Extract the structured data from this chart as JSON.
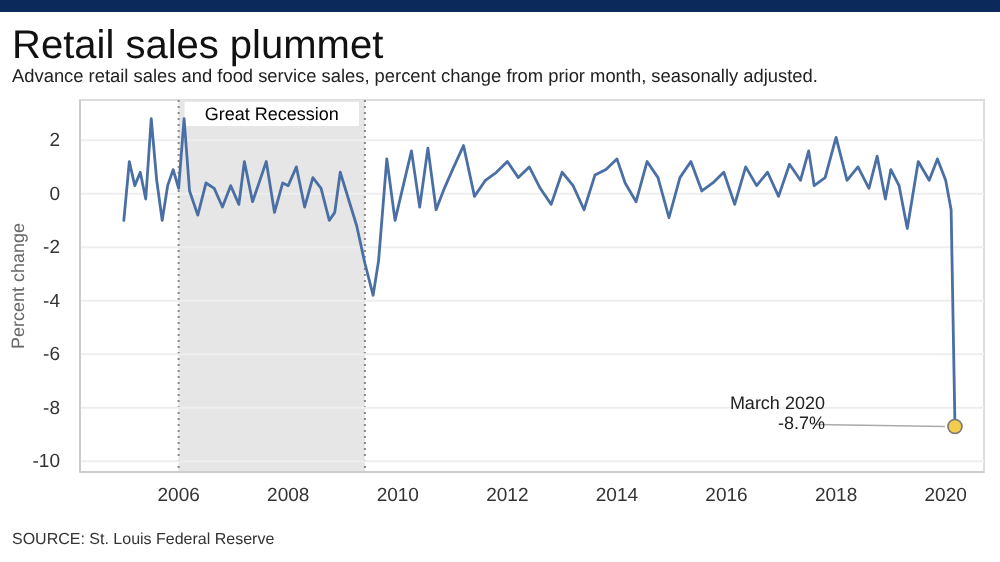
{
  "chart_data": {
    "type": "line",
    "title": "Retail sales plummet",
    "subtitle": "Advance retail sales and food service sales, percent change from prior month, seasonally adjusted.",
    "ylabel": "Percent change",
    "x": [
      2005.0,
      2005.1,
      2005.2,
      2005.3,
      2005.4,
      2005.5,
      2005.6,
      2005.7,
      2005.8,
      2005.9,
      2006.0,
      2006.1,
      2006.2,
      2006.35,
      2006.5,
      2006.65,
      2006.8,
      2006.95,
      2007.1,
      2007.2,
      2007.35,
      2007.5,
      2007.6,
      2007.75,
      2007.9,
      2008.0,
      2008.15,
      2008.3,
      2008.45,
      2008.6,
      2008.75,
      2008.85,
      2008.95,
      2009.1,
      2009.25,
      2009.4,
      2009.55,
      2009.65,
      2009.8,
      2009.95,
      2010.1,
      2010.25,
      2010.4,
      2010.55,
      2010.7,
      2010.85,
      2011.0,
      2011.2,
      2011.4,
      2011.6,
      2011.8,
      2012.0,
      2012.2,
      2012.4,
      2012.6,
      2012.8,
      2013.0,
      2013.2,
      2013.4,
      2013.6,
      2013.8,
      2014.0,
      2014.15,
      2014.35,
      2014.55,
      2014.75,
      2014.95,
      2015.15,
      2015.35,
      2015.55,
      2015.75,
      2015.95,
      2016.15,
      2016.35,
      2016.55,
      2016.75,
      2016.95,
      2017.15,
      2017.35,
      2017.5,
      2017.6,
      2017.8,
      2018.0,
      2018.2,
      2018.4,
      2018.6,
      2018.75,
      2018.9,
      2019.0,
      2019.15,
      2019.3,
      2019.5,
      2019.7,
      2019.85,
      2020.0,
      2020.1,
      2020.17
    ],
    "series": [
      {
        "color": "#4a6fa5",
        "values": [
          -1.0,
          1.2,
          0.3,
          0.8,
          -0.2,
          2.8,
          0.5,
          -1.0,
          0.3,
          0.9,
          0.2,
          2.8,
          0.1,
          -0.8,
          0.4,
          0.2,
          -0.5,
          0.3,
          -0.4,
          1.2,
          -0.3,
          0.6,
          1.2,
          -0.7,
          0.4,
          0.3,
          1.0,
          -0.5,
          0.6,
          0.2,
          -1.0,
          -0.7,
          0.8,
          -0.2,
          -1.2,
          -2.6,
          -3.8,
          -2.5,
          1.3,
          -1.0,
          0.3,
          1.6,
          -0.5,
          1.7,
          -0.6,
          0.2,
          0.9,
          1.8,
          -0.1,
          0.5,
          0.8,
          1.2,
          0.6,
          1.0,
          0.2,
          -0.4,
          0.8,
          0.3,
          -0.6,
          0.7,
          0.9,
          1.3,
          0.4,
          -0.3,
          1.2,
          0.6,
          -0.9,
          0.6,
          1.2,
          0.1,
          0.4,
          0.8,
          -0.4,
          1.0,
          0.3,
          0.8,
          -0.1,
          1.1,
          0.5,
          1.6,
          0.3,
          0.6,
          2.1,
          0.5,
          1.0,
          0.2,
          1.4,
          -0.2,
          0.9,
          0.3,
          -1.3,
          1.2,
          0.5,
          1.3,
          0.5,
          -0.6,
          -8.7
        ]
      }
    ],
    "xlim": [
      2004.2,
      2020.7
    ],
    "xticks": [
      2006,
      2008,
      2010,
      2012,
      2014,
      2016,
      2018,
      2020
    ],
    "ylim": [
      -10.4,
      3.5
    ],
    "yticks": [
      -10,
      -8,
      -6,
      -4,
      -2,
      0,
      2
    ],
    "grid": "y",
    "ref_lines": [
      {
        "axis": "x",
        "value": 2006,
        "color": "#888888",
        "line_style": "dotted"
      },
      {
        "axis": "x",
        "value": 2009.4,
        "color": "#888888",
        "line_style": "dotted"
      }
    ],
    "bands": [
      {
        "axis": "x",
        "from": 2006,
        "to": 2009.4,
        "label": "Great Recession",
        "color": "#e6e6e6"
      }
    ],
    "annotations": [
      {
        "text": "March 2020\n-8.7%",
        "x": 2020.17,
        "y": -8.7
      },
      "SOURCE: St. Louis Federal Reserve"
    ]
  }
}
